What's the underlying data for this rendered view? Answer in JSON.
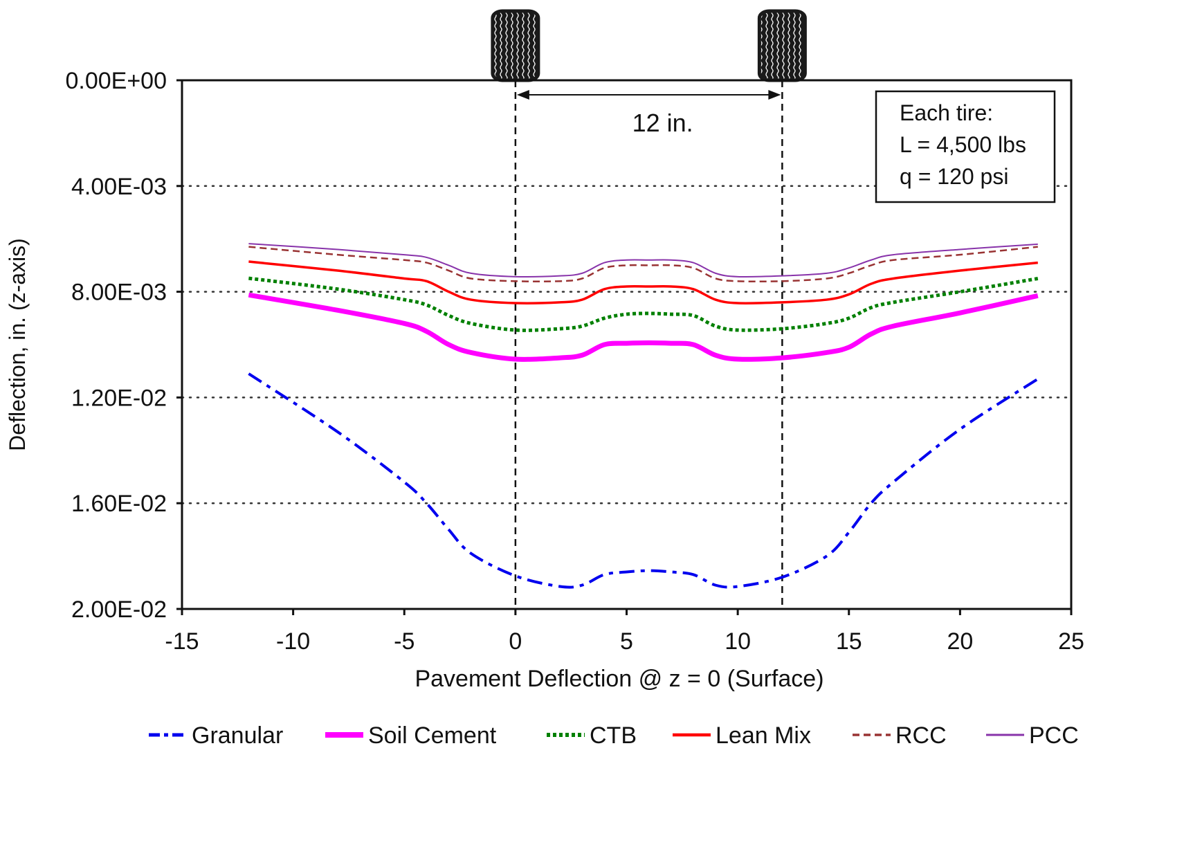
{
  "chart_data": {
    "type": "line",
    "title": "",
    "xlabel": "Pavement Deflection @ z = 0 (Surface)",
    "ylabel": "Deflection, in. (z-axis)",
    "xlim": [
      -15,
      25
    ],
    "ylim": [
      0,
      0.02
    ],
    "y_inverted": true,
    "x_ticks": [
      -15,
      -10,
      -5,
      0,
      5,
      10,
      15,
      20,
      25
    ],
    "x_tick_labels": [
      "-15",
      "-10",
      "-5",
      "0",
      "5",
      "10",
      "15",
      "20",
      "25"
    ],
    "y_ticks": [
      0,
      0.004,
      0.008,
      0.012,
      0.016,
      0.02
    ],
    "y_tick_labels": [
      "0.00E+00",
      "4.00E-03",
      "8.00E-03",
      "1.20E-02",
      "1.60E-02",
      "2.00E-02"
    ],
    "grid": "horizontal-dotted",
    "legend_position": "bottom",
    "x": [
      -12,
      -8,
      -5,
      -4,
      -3,
      -2,
      0,
      2,
      3,
      4,
      5,
      6,
      7,
      8,
      9,
      10,
      12,
      14,
      15,
      16,
      17,
      20,
      23.5
    ],
    "series": [
      {
        "name": "Granular",
        "color": "#0000ee",
        "style": "dash-dot",
        "values": [
          0.0111,
          0.0133,
          0.0152,
          0.016,
          0.017,
          0.0179,
          0.01875,
          0.01915,
          0.0191,
          0.0187,
          0.0186,
          0.01855,
          0.0186,
          0.0187,
          0.0191,
          0.01915,
          0.0188,
          0.018,
          0.0171,
          0.016,
          0.0152,
          0.0132,
          0.0113
        ]
      },
      {
        "name": "Soil Cement",
        "color": "#ff00ff",
        "style": "thick-solid",
        "values": [
          0.00812,
          0.0087,
          0.0092,
          0.0095,
          0.01,
          0.0103,
          0.01055,
          0.0105,
          0.0104,
          0.01,
          0.00995,
          0.00993,
          0.00995,
          0.01,
          0.0104,
          0.01055,
          0.0105,
          0.0103,
          0.0101,
          0.0096,
          0.0093,
          0.0088,
          0.00815
        ]
      },
      {
        "name": "CTB",
        "color": "#008000",
        "style": "dotted",
        "values": [
          0.00749,
          0.0079,
          0.0083,
          0.0085,
          0.0089,
          0.0092,
          0.00945,
          0.0094,
          0.0093,
          0.009,
          0.00885,
          0.00882,
          0.00885,
          0.0089,
          0.0093,
          0.00945,
          0.0094,
          0.0092,
          0.009,
          0.0086,
          0.0084,
          0.008,
          0.0075
        ]
      },
      {
        "name": "Lean Mix",
        "color": "#ff0000",
        "style": "solid",
        "values": [
          0.00686,
          0.0072,
          0.0075,
          0.0076,
          0.008,
          0.0083,
          0.00843,
          0.0084,
          0.0083,
          0.0079,
          0.0078,
          0.0078,
          0.0078,
          0.0079,
          0.0083,
          0.00843,
          0.0084,
          0.0083,
          0.0081,
          0.0077,
          0.0075,
          0.0072,
          0.0069
        ]
      },
      {
        "name": "RCC",
        "color": "#993333",
        "style": "dashed",
        "values": [
          0.0063,
          0.0066,
          0.0068,
          0.0069,
          0.0072,
          0.0075,
          0.0076,
          0.0076,
          0.0075,
          0.0071,
          0.007,
          0.007,
          0.007,
          0.0071,
          0.0075,
          0.0076,
          0.0076,
          0.0075,
          0.0073,
          0.007,
          0.0068,
          0.0066,
          0.0063
        ]
      },
      {
        "name": "PCC",
        "color": "#8833aa",
        "style": "thin-solid",
        "values": [
          0.00618,
          0.0064,
          0.0066,
          0.0067,
          0.007,
          0.0073,
          0.00743,
          0.0074,
          0.0073,
          0.0069,
          0.0068,
          0.0068,
          0.0068,
          0.0069,
          0.0073,
          0.00743,
          0.0074,
          0.0073,
          0.0071,
          0.0068,
          0.0066,
          0.0064,
          0.0062
        ]
      }
    ],
    "annotations": {
      "tire_positions_x": [
        0,
        12
      ],
      "dimension_label": "12 in.",
      "info_box": [
        "Each tire:",
        "L = 4,500 lbs",
        "q = 120 psi"
      ]
    }
  }
}
